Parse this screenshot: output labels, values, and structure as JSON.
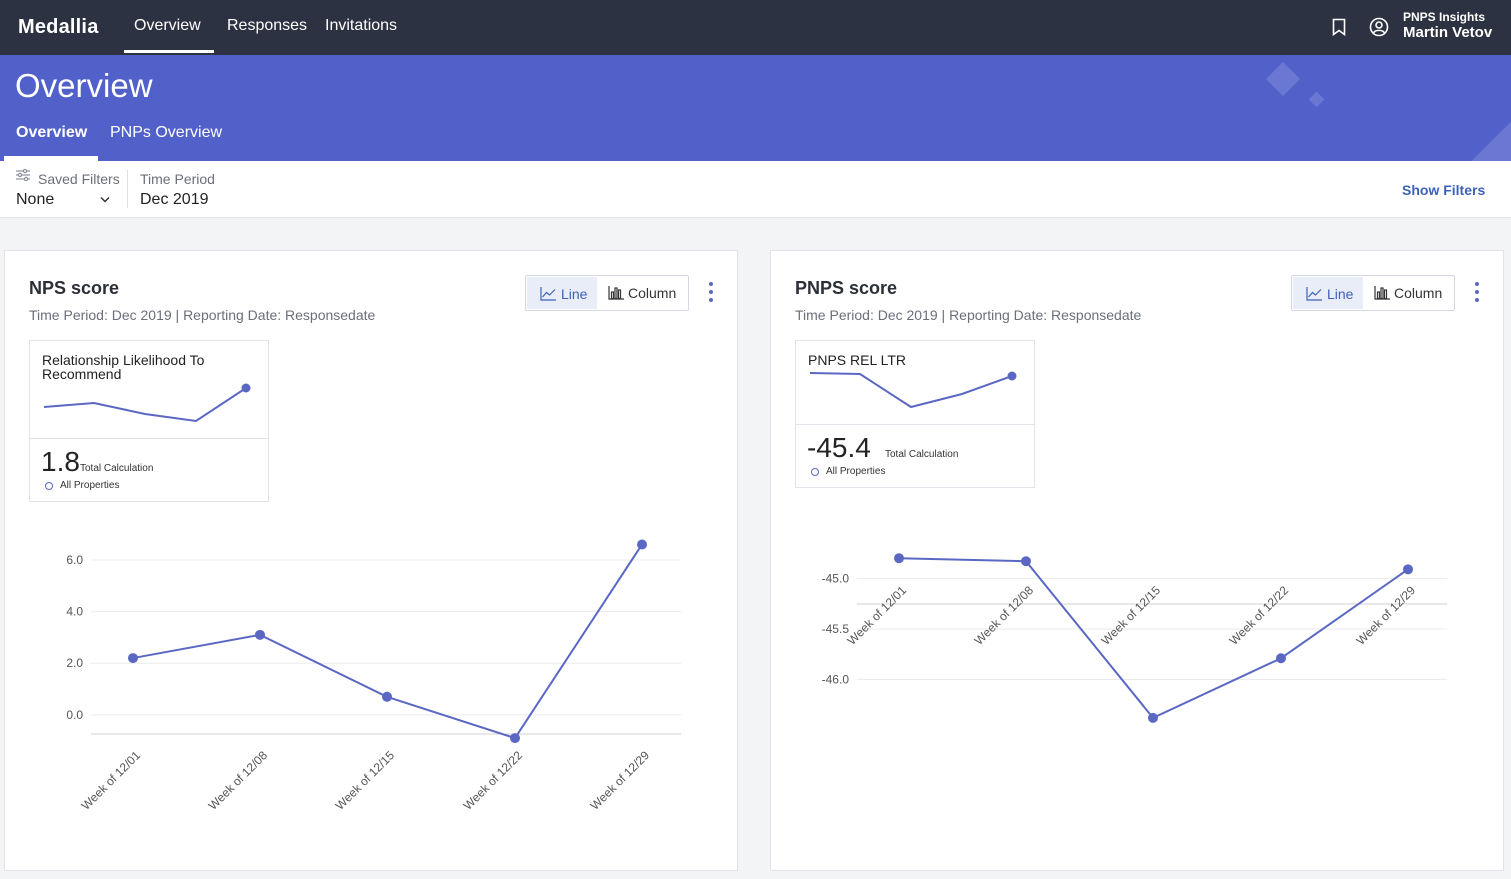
{
  "app": {
    "logo": "Medallia",
    "nav": [
      {
        "label": "Overview",
        "active": true
      },
      {
        "label": "Responses",
        "active": false
      },
      {
        "label": "Invitations",
        "active": false
      }
    ],
    "user": {
      "app_name": "PNPS Insights",
      "name": "Martin Vetov"
    }
  },
  "header": {
    "title": "Overview",
    "tabs": [
      {
        "label": "Overview",
        "active": true
      },
      {
        "label": "PNPs Overview",
        "active": false
      }
    ]
  },
  "filters": {
    "saved_label": "Saved Filters",
    "saved_value": "None",
    "time_label": "Time Period",
    "time_value": "Dec 2019",
    "show_filters": "Show Filters"
  },
  "colors": {
    "topbar": "#2c3241",
    "header": "#5161c9",
    "series": "#5a68c4",
    "link": "#3e62b8"
  },
  "cards": [
    {
      "title": "NPS score",
      "subtitle": "Time Period: Dec 2019 | Reporting Date: Responsedate",
      "toggle": {
        "line": "Line",
        "column": "Column",
        "selected": "Line"
      },
      "kpi": {
        "name": "Relationship Likelihood To Recommend",
        "value": "1.8",
        "calc": "Total Calculation",
        "properties": "All Properties"
      }
    },
    {
      "title": "PNPS score",
      "subtitle": "Time Period: Dec 2019 | Reporting Date: Responsedate",
      "toggle": {
        "line": "Line",
        "column": "Column",
        "selected": "Line"
      },
      "kpi": {
        "name": "PNPS REL LTR",
        "value": "-45.4",
        "calc": "Total Calculation",
        "properties": "All Properties"
      }
    }
  ],
  "chart_data": [
    {
      "type": "line",
      "categories": [
        "Week of 12/01",
        "Week of 12/08",
        "Week of 12/15",
        "Week of 12/22",
        "Week of 12/29"
      ],
      "series": [
        {
          "values": [
            2.2,
            3.1,
            0.7,
            -0.9,
            6.6
          ]
        }
      ],
      "yticks": [
        "6.0",
        "4.0",
        "2.0",
        "0.0"
      ],
      "ytick_values": [
        6,
        4,
        2,
        0
      ],
      "ylim": [
        -1.4,
        7.2
      ],
      "grid": true
    },
    {
      "type": "line",
      "categories": [
        "Week of 12/01",
        "Week of 12/08",
        "Week of 12/15",
        "Week of 12/22",
        "Week of 12/29"
      ],
      "series": [
        {
          "values": [
            -44.8,
            -44.83,
            -46.38,
            -45.79,
            -44.91
          ]
        }
      ],
      "yticks": [
        "-45.0",
        "-45.5",
        "-46.0"
      ],
      "ytick_values": [
        -45.0,
        -45.5,
        -46.0
      ],
      "ylim": [
        -46.5,
        -44.6
      ],
      "grid": true
    }
  ]
}
